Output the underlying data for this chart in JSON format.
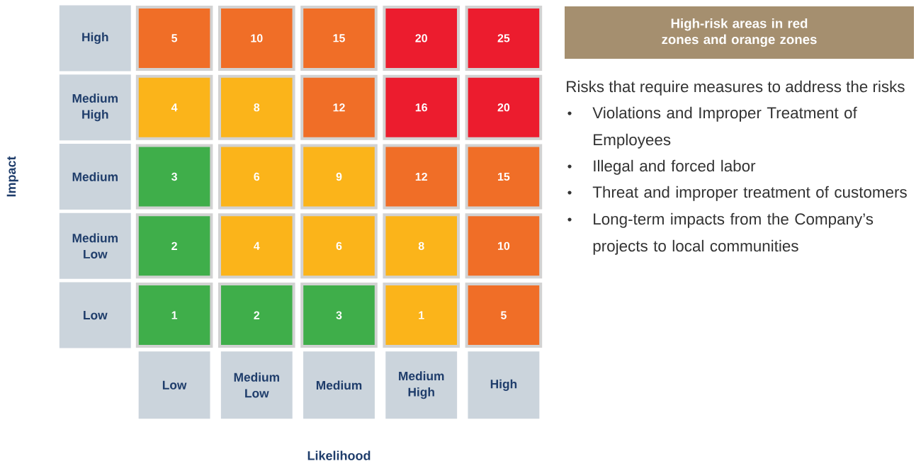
{
  "chart_data": {
    "type": "heatmap",
    "title": "High-risk areas in red zones and orange zones",
    "xlabel": "Likelihood",
    "ylabel": "Impact",
    "categories": [
      "Low",
      "Medium Low",
      "Medium",
      "Medium High",
      "High"
    ],
    "y_categories": [
      "High",
      "Medium High",
      "Medium",
      "Medium Low",
      "Low"
    ],
    "cells": [
      [
        5,
        10,
        15,
        20,
        25
      ],
      [
        4,
        8,
        12,
        16,
        20
      ],
      [
        3,
        6,
        9,
        12,
        15
      ],
      [
        2,
        4,
        6,
        8,
        10
      ],
      [
        1,
        2,
        3,
        1,
        5
      ]
    ],
    "colors": [
      [
        "#f06e27",
        "#f06e27",
        "#f06e27",
        "#ec1c2e",
        "#ec1c2e"
      ],
      [
        "#fbb41a",
        "#fbb41a",
        "#f06e27",
        "#ec1c2e",
        "#ec1c2e"
      ],
      [
        "#3fae4a",
        "#fbb41a",
        "#fbb41a",
        "#f06e27",
        "#f06e27"
      ],
      [
        "#3fae4a",
        "#fbb41a",
        "#fbb41a",
        "#fbb41a",
        "#f06e27"
      ],
      [
        "#3fae4a",
        "#3fae4a",
        "#3fae4a",
        "#fbb41a",
        "#f06e27"
      ]
    ],
    "data_labels": true,
    "annotations": [
      "Risks that require measures to address the risks",
      "Violations and Improper Treatment of Employees",
      "Illegal and forced labor",
      "Threat and improper treatment of customers",
      "Long-term impacts from the Company’s projects to local communities"
    ]
  }
}
